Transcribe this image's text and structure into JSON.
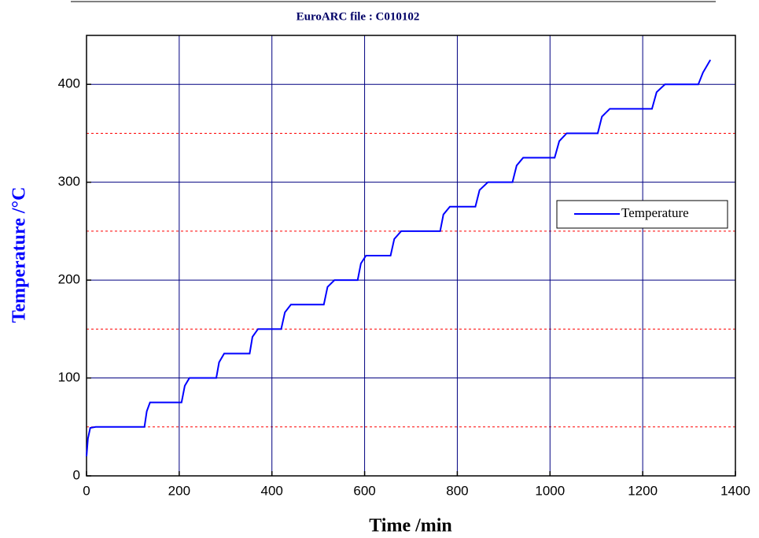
{
  "chart_data": {
    "type": "line",
    "title": "EuroARC file : C010102",
    "x_label": "Time /min",
    "y_label": "Temperature /°C",
    "xlim": [
      0,
      1400
    ],
    "xticks": [
      0,
      200,
      400,
      600,
      800,
      1000,
      1200,
      1400
    ],
    "ylim": [
      0,
      450
    ],
    "yticks": [
      0,
      100,
      200,
      300,
      400
    ],
    "y_minor_grid": [
      50,
      150,
      250,
      350
    ],
    "grid": true,
    "legend": "right",
    "x": [
      0,
      3,
      8,
      20,
      125,
      130,
      137,
      205,
      212,
      222,
      280,
      286,
      297,
      352,
      358,
      370,
      420,
      428,
      441,
      512,
      520,
      535,
      585,
      592,
      603,
      656,
      664,
      679,
      763,
      770,
      784,
      839,
      848,
      866,
      919,
      928,
      942,
      1010,
      1020,
      1036,
      1103,
      1112,
      1129,
      1220,
      1230,
      1248,
      1320,
      1330,
      1346
    ],
    "series": [
      {
        "name": "Temperature",
        "color": "#0000ff",
        "values": [
          20,
          38,
          49,
          50,
          50,
          66,
          75,
          75,
          92,
          100,
          100,
          116,
          125,
          125,
          142,
          150,
          150,
          167,
          175,
          175,
          193,
          200,
          200,
          217,
          225,
          225,
          242,
          250,
          250,
          267,
          275,
          275,
          292,
          300,
          300,
          317,
          325,
          325,
          342,
          350,
          350,
          367,
          375,
          375,
          392,
          400,
          400,
          412,
          425
        ]
      }
    ]
  }
}
